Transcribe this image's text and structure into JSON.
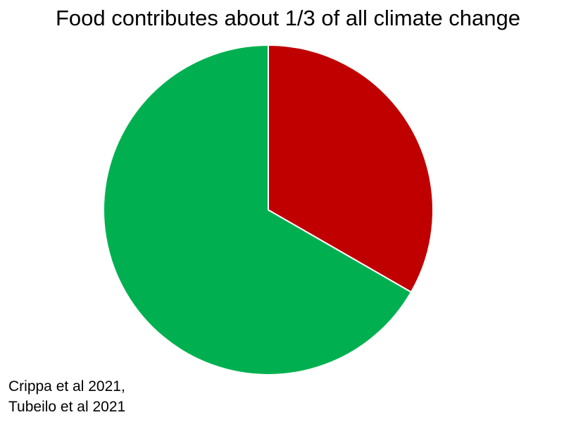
{
  "chart_data": {
    "type": "pie",
    "title": "Food contributes about 1/3 of all climate change",
    "slices": [
      {
        "value": 0.333,
        "color": "#c00000"
      },
      {
        "value": 0.667,
        "color": "#00b050"
      }
    ],
    "start_angle_deg": 0,
    "direction": "clockwise",
    "legend": "none"
  },
  "source_note": {
    "line1": "Crippa et al 2021,",
    "line2": "Tubeilo et al 2021"
  }
}
